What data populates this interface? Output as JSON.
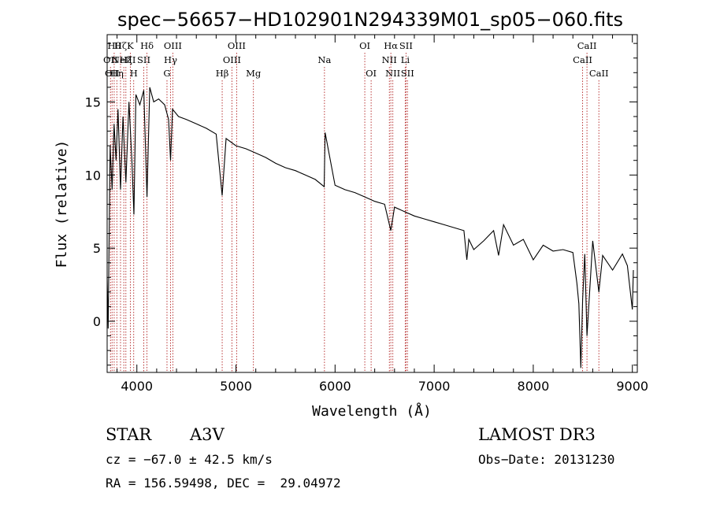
{
  "chart_data": {
    "type": "line",
    "title": "spec−56657−HD102901N294339M01_sp05−060.fits",
    "xlabel": "Wavelength (Å)",
    "ylabel": "Flux (relative)",
    "xlim": [
      3700,
      9050
    ],
    "ylim": [
      -3.5,
      19.6
    ],
    "x_ticks": [
      4000,
      5000,
      6000,
      7000,
      8000,
      9000
    ],
    "y_ticks": [
      0,
      5,
      10,
      15
    ],
    "line_color": "#000000",
    "marker_color": "#b22222",
    "spectrum": {
      "x": [
        3700,
        3710,
        3730,
        3750,
        3770,
        3790,
        3810,
        3835,
        3860,
        3889,
        3920,
        3950,
        3970,
        3990,
        4030,
        4070,
        4102,
        4130,
        4170,
        4220,
        4280,
        4320,
        4340,
        4360,
        4420,
        4500,
        4600,
        4700,
        4800,
        4861,
        4900,
        5000,
        5100,
        5200,
        5300,
        5400,
        5500,
        5600,
        5700,
        5800,
        5890,
        5900,
        6000,
        6100,
        6200,
        6300,
        6400,
        6500,
        6563,
        6600,
        6700,
        6800,
        6900,
        7000,
        7100,
        7200,
        7300,
        7330,
        7350,
        7400,
        7500,
        7600,
        7650,
        7700,
        7800,
        7900,
        8000,
        8100,
        8200,
        8300,
        8400,
        8440,
        8460,
        8480,
        8498,
        8520,
        8542,
        8600,
        8662,
        8700,
        8800,
        8900,
        8950,
        9000,
        9010
      ],
      "y": [
        3.0,
        -0.5,
        12.0,
        9.0,
        13.5,
        11.0,
        14.5,
        9.0,
        14.0,
        9.5,
        15.0,
        11.0,
        7.3,
        15.5,
        14.8,
        15.8,
        8.5,
        16.0,
        15.0,
        15.2,
        14.8,
        13.8,
        11.0,
        14.5,
        14.0,
        13.8,
        13.5,
        13.2,
        12.8,
        8.6,
        12.5,
        12.0,
        11.8,
        11.5,
        11.2,
        10.8,
        10.5,
        10.3,
        10.0,
        9.7,
        9.2,
        12.9,
        9.3,
        9.0,
        8.8,
        8.5,
        8.2,
        8.0,
        6.2,
        7.8,
        7.5,
        7.2,
        7.0,
        6.8,
        6.6,
        6.4,
        6.2,
        4.2,
        5.6,
        4.9,
        5.5,
        6.2,
        4.5,
        6.6,
        5.2,
        5.6,
        4.2,
        5.2,
        4.8,
        4.9,
        4.7,
        2.6,
        1.2,
        -3.2,
        1.5,
        4.6,
        -1.0,
        5.5,
        2.0,
        4.5,
        3.5,
        4.6,
        3.8,
        0.8,
        3.5
      ]
    },
    "lines": [
      {
        "w": 3734,
        "label": "OII",
        "row": 2
      },
      {
        "w": 3750,
        "label": "OII",
        "row": 3
      },
      {
        "w": 3771,
        "label": "Hθ",
        "row": 1
      },
      {
        "w": 3798,
        "label": "Hη",
        "row": 3
      },
      {
        "w": 3835,
        "label": "Hζ",
        "row": 1
      },
      {
        "w": 3868,
        "label": "NeIII",
        "row": 2
      },
      {
        "w": 3889,
        "label": "Hξ",
        "row": 2
      },
      {
        "w": 3934,
        "label": "K",
        "row": 1
      },
      {
        "w": 3968,
        "label": "H",
        "row": 3
      },
      {
        "w": 4070,
        "label": "SII",
        "row": 2
      },
      {
        "w": 4102,
        "label": "Hδ",
        "row": 1
      },
      {
        "w": 4304,
        "label": "G",
        "row": 3
      },
      {
        "w": 4340,
        "label": "Hγ",
        "row": 2
      },
      {
        "w": 4363,
        "label": "OIII",
        "row": 1
      },
      {
        "w": 4861,
        "label": "Hβ",
        "row": 3
      },
      {
        "w": 4959,
        "label": "OIII",
        "row": 2
      },
      {
        "w": 5007,
        "label": "OIII",
        "row": 1
      },
      {
        "w": 5176,
        "label": "Mg",
        "row": 3
      },
      {
        "w": 5893,
        "label": "Na",
        "row": 2
      },
      {
        "w": 6300,
        "label": "OI",
        "row": 1
      },
      {
        "w": 6364,
        "label": "OI",
        "row": 3
      },
      {
        "w": 6548,
        "label": "NII",
        "row": 2
      },
      {
        "w": 6563,
        "label": "Hα",
        "row": 1
      },
      {
        "w": 6583,
        "label": "NII",
        "row": 3
      },
      {
        "w": 6708,
        "label": "Li",
        "row": 2
      },
      {
        "w": 6716,
        "label": "SII",
        "row": 1
      },
      {
        "w": 6731,
        "label": "SII",
        "row": 3
      },
      {
        "w": 8498,
        "label": "CaII",
        "row": 2
      },
      {
        "w": 8542,
        "label": "CaII",
        "row": 1
      },
      {
        "w": 8662,
        "label": "CaII",
        "row": 3
      }
    ]
  },
  "info": {
    "object_class": "STAR",
    "subclass": "A3V",
    "survey": "LAMOST DR3",
    "cz": "cz = −67.0 ± 42.5 km/s",
    "obs_date": "Obs−Date: 20131230",
    "coords": "RA = 156.59498, DEC =  29.04972"
  }
}
